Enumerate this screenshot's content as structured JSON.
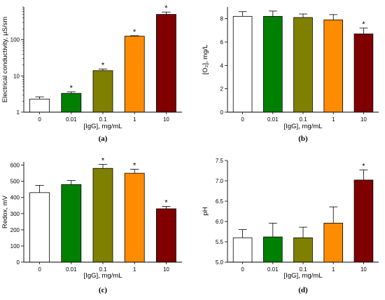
{
  "chart_data": [
    {
      "type": "bar",
      "panel_label": "(a)",
      "categories": [
        "0",
        "0.01",
        "0.1",
        "1",
        "10"
      ],
      "values": [
        2.3,
        3.3,
        14,
        125,
        500
      ],
      "errors": [
        0.35,
        0.35,
        1.5,
        4,
        80
      ],
      "significant": [
        false,
        true,
        true,
        true,
        true
      ],
      "marker": "*",
      "colors": [
        "#ffffff",
        "#008000",
        "#808000",
        "#ff8c00",
        "#800000"
      ],
      "xlabel": "[IgG], mg/mL",
      "ylabel": "Electrical conductivity, µS/sm",
      "yscale": "log",
      "ylim": [
        1,
        800
      ],
      "yticks": [
        1,
        10,
        100
      ],
      "yticklabels": [
        "1",
        "10",
        "100"
      ]
    },
    {
      "type": "bar",
      "panel_label": "(b)",
      "categories": [
        "0",
        "0.01",
        "0.1",
        "1",
        "10"
      ],
      "values": [
        8.2,
        8.2,
        8.1,
        7.9,
        6.7
      ],
      "errors": [
        0.4,
        0.45,
        0.3,
        0.45,
        0.5
      ],
      "significant": [
        false,
        false,
        false,
        false,
        true
      ],
      "marker": "*",
      "colors": [
        "#ffffff",
        "#008000",
        "#808000",
        "#ff8c00",
        "#800000"
      ],
      "xlabel": "[IgG], mg/mL",
      "ylabel": "[O₂], mg/L",
      "yscale": "linear",
      "ylim": [
        0,
        9
      ],
      "yticks": [
        0,
        2,
        4,
        6,
        8
      ],
      "yticklabels": [
        "0",
        "2",
        "4",
        "6",
        "8"
      ]
    },
    {
      "type": "bar",
      "panel_label": "(c)",
      "categories": [
        "0",
        "0.01",
        "0.1",
        "1",
        "10"
      ],
      "values": [
        430,
        480,
        580,
        550,
        330
      ],
      "errors": [
        45,
        25,
        25,
        25,
        15
      ],
      "significant": [
        false,
        false,
        true,
        true,
        true
      ],
      "marker": "*",
      "colors": [
        "#ffffff",
        "#008000",
        "#808000",
        "#ff8c00",
        "#800000"
      ],
      "xlabel": "[IgG], mg/mL",
      "ylabel": "Redox, mV",
      "yscale": "linear",
      "ylim": [
        0,
        620
      ],
      "yticks": [
        0,
        100,
        200,
        300,
        400,
        500,
        600
      ],
      "yticklabels": [
        "0",
        "100",
        "200",
        "300",
        "400",
        "500",
        "600"
      ]
    },
    {
      "type": "bar",
      "panel_label": "(d)",
      "categories": [
        "0",
        "0.01",
        "0.1",
        "1",
        "10"
      ],
      "values": [
        5.6,
        5.62,
        5.6,
        5.96,
        7.02
      ],
      "errors": [
        0.2,
        0.34,
        0.26,
        0.4,
        0.25
      ],
      "significant": [
        false,
        false,
        false,
        false,
        true
      ],
      "marker": "*",
      "colors": [
        "#ffffff",
        "#008000",
        "#808000",
        "#ff8c00",
        "#800000"
      ],
      "xlabel": "[IgG], mg/mL",
      "ylabel": "pH",
      "yscale": "linear",
      "ylim": [
        5.0,
        7.5
      ],
      "yticks": [
        5.0,
        5.5,
        6.0,
        6.5,
        7.0,
        7.5
      ],
      "yticklabels": [
        "5.0",
        "5.5",
        "6.0",
        "6.5",
        "7.0",
        "7.5"
      ]
    }
  ]
}
